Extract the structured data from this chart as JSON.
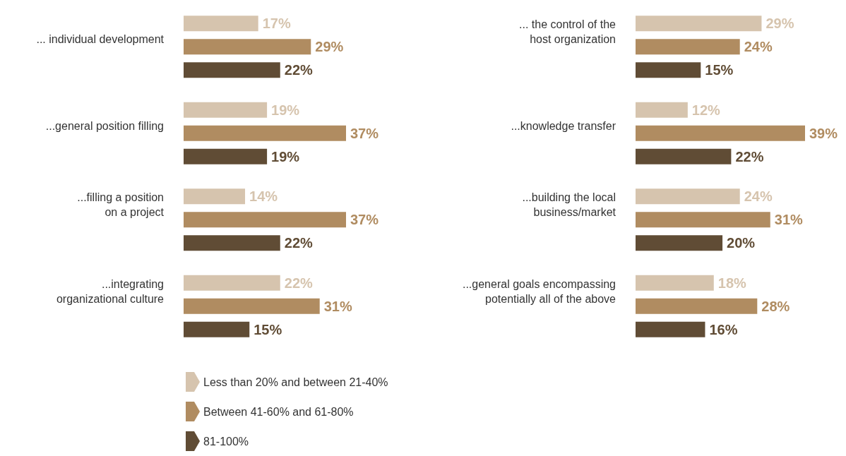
{
  "chart_data": [
    {
      "type": "bar",
      "orientation": "horizontal",
      "legend": "bottom",
      "categories": [
        "... individual development",
        "...general position filling",
        "...filling a position\non a project",
        "...integrating\norganizational culture"
      ],
      "series": [
        {
          "name": "Less than 20% and between 21-40%",
          "color": "#d6c4ae",
          "values": [
            17,
            19,
            14,
            22
          ],
          "value_labels": [
            "17%",
            "19%",
            "14%",
            "22%"
          ]
        },
        {
          "name": "Between 41-60% and 61-80%",
          "color": "#b08c61",
          "values": [
            29,
            37,
            37,
            31
          ],
          "value_labels": [
            "29%",
            "37%",
            "37%",
            "31%"
          ]
        },
        {
          "name": "81-100%",
          "color": "#604c35",
          "values": [
            22,
            19,
            22,
            15
          ],
          "value_labels": [
            "22%",
            "19%",
            "22%",
            "15%"
          ]
        }
      ]
    },
    {
      "type": "bar",
      "orientation": "horizontal",
      "legend": false,
      "categories": [
        "... the control of the\nhost organization",
        "...knowledge transfer",
        "...building the local\nbusiness/market",
        "...general goals encompassing\npotentially all of the above"
      ],
      "series": [
        {
          "color": "#d6c4ae",
          "values": [
            29,
            12,
            24,
            18
          ],
          "value_labels": [
            "29%",
            "12%",
            "24%",
            "18%"
          ]
        },
        {
          "color": "#b08c61",
          "values": [
            24,
            39,
            31,
            28
          ],
          "value_labels": [
            "24%",
            "39%",
            "31%",
            "28%"
          ]
        },
        {
          "color": "#604c35",
          "values": [
            15,
            22,
            20,
            16
          ],
          "value_labels": [
            "15%",
            "22%",
            "20%",
            "16%"
          ]
        }
      ]
    }
  ]
}
